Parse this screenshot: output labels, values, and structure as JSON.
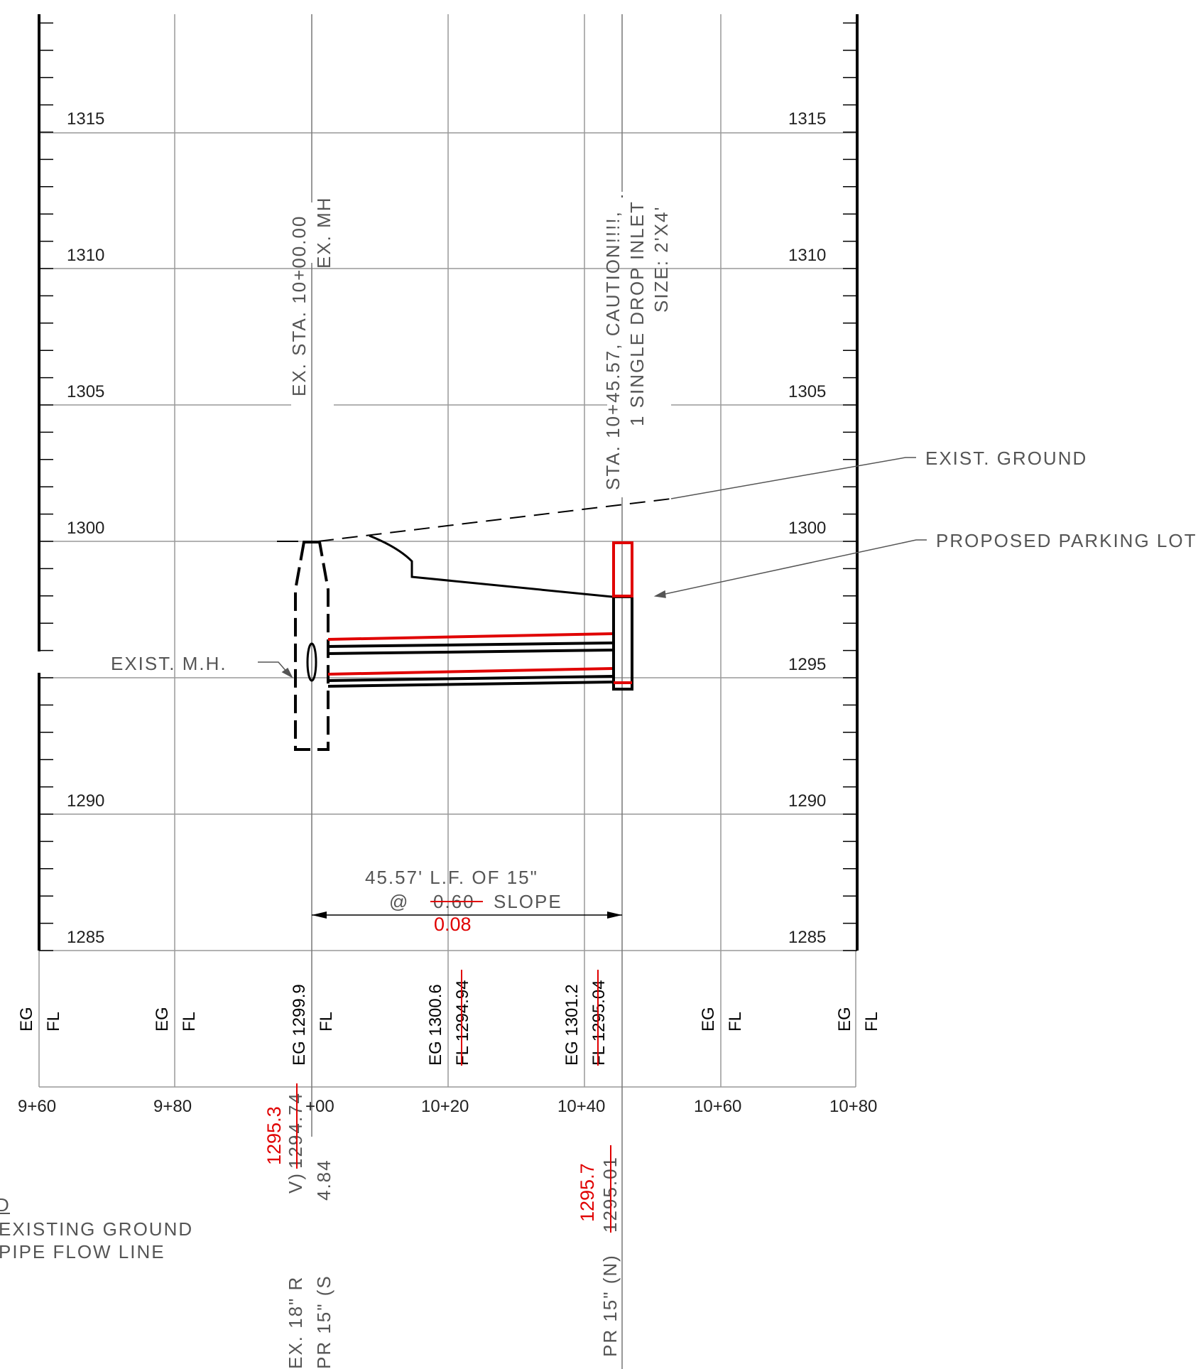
{
  "elevation_labels": {
    "e1315": "1315",
    "e1310": "1310",
    "e1305": "1305",
    "e1300": "1300",
    "e1295": "1295",
    "e1290": "1290",
    "e1285": "1285"
  },
  "station_labels": {
    "s960": "9+60",
    "s980": "9+80",
    "s1000": "+00",
    "s1020": "10+20",
    "s1040": "10+40",
    "s1060": "10+60",
    "s1080": "10+80"
  },
  "profile_rows": {
    "eg": "EG",
    "fl": "FL"
  },
  "station_data": {
    "eg_1000": "EG 1299.9",
    "eg_1020": "EG 1300.6",
    "fl_1020_old": "FL 1294.94",
    "eg_1040": "EG 1301.2",
    "fl_1040_old": "FL 1295.04"
  },
  "callouts": {
    "ex_mh_station": "EX. STA. 10+00.00",
    "ex_mh": "EX. MH",
    "inlet_station": "STA. 10+45.57, CAUTION!!!!,",
    "inlet_type": "1 SINGLE DROP INLET",
    "inlet_size": "SIZE: 2'X4'",
    "exist_ground": "EXIST. GROUND",
    "proposed_lot": "PROPOSED PARKING LOT",
    "exist_mh": "EXIST.   M.H.",
    "pipe_length": "45.57' L.F. OF 15\"",
    "slope_at": "@",
    "slope_old": "0.60",
    "slope_word": "SLOPE",
    "slope_new": "0.08"
  },
  "bottom_labels": {
    "ex18_prefix": "EX. 18\" R",
    "ex18_rest": "V)",
    "ex18_fl_old": "1294.74",
    "ex18_fl_new": "1295.3",
    "pr15s_prefix": "PR 15\" (S",
    "pr15s_value": "4.84",
    "pr15n_prefix": "PR 15\" (N)",
    "pr15n_fl_old": "1295.01",
    "pr15n_fl_new": "1295.7"
  },
  "legend": {
    "heading": "D",
    "eg_desc": "EXISTING GROUND",
    "fl_desc": "PIPE FLOW LINE"
  },
  "colors": {
    "revision": "#e00000",
    "linework": "#000000",
    "grid": "#999999",
    "annotation": "#555555"
  }
}
